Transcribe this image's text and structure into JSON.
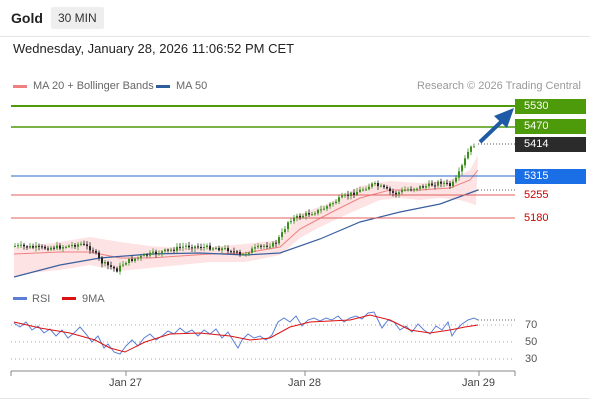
{
  "header": {
    "instrument": "Gold",
    "timeframe": "30 MIN"
  },
  "timestamp": "Wednesday, January 28, 2026 11:06:52 PM CET",
  "legend": {
    "ma_bb": {
      "label": "MA 20 + Bollinger Bands",
      "color": "#f08080"
    },
    "ma50": {
      "label": "MA 50",
      "color": "#2f5e9e"
    },
    "credit": "Research © 2026 Trading Central"
  },
  "levels": {
    "r2": {
      "value": "5530",
      "color": "#4d9a0a"
    },
    "r1": {
      "value": "5470",
      "color": "#4d9a0a"
    },
    "last": {
      "value": "5414",
      "color": "#2b2b2b"
    },
    "pivot": {
      "value": "5315",
      "color": "#1a6ee6"
    },
    "s1": {
      "value": "5255",
      "color": "#cc0000"
    },
    "s2": {
      "value": "5180",
      "color": "#cc0000"
    }
  },
  "rsi_panel": {
    "legend_rsi": {
      "label": "RSI",
      "color": "#5b7fd6"
    },
    "legend_ma": {
      "label": "9MA",
      "color": "#dd1111"
    },
    "levels": [
      "70",
      "50",
      "30"
    ]
  },
  "xaxis": {
    "labels": [
      "Jan 27",
      "Jan 28",
      "Jan 29"
    ]
  }
}
